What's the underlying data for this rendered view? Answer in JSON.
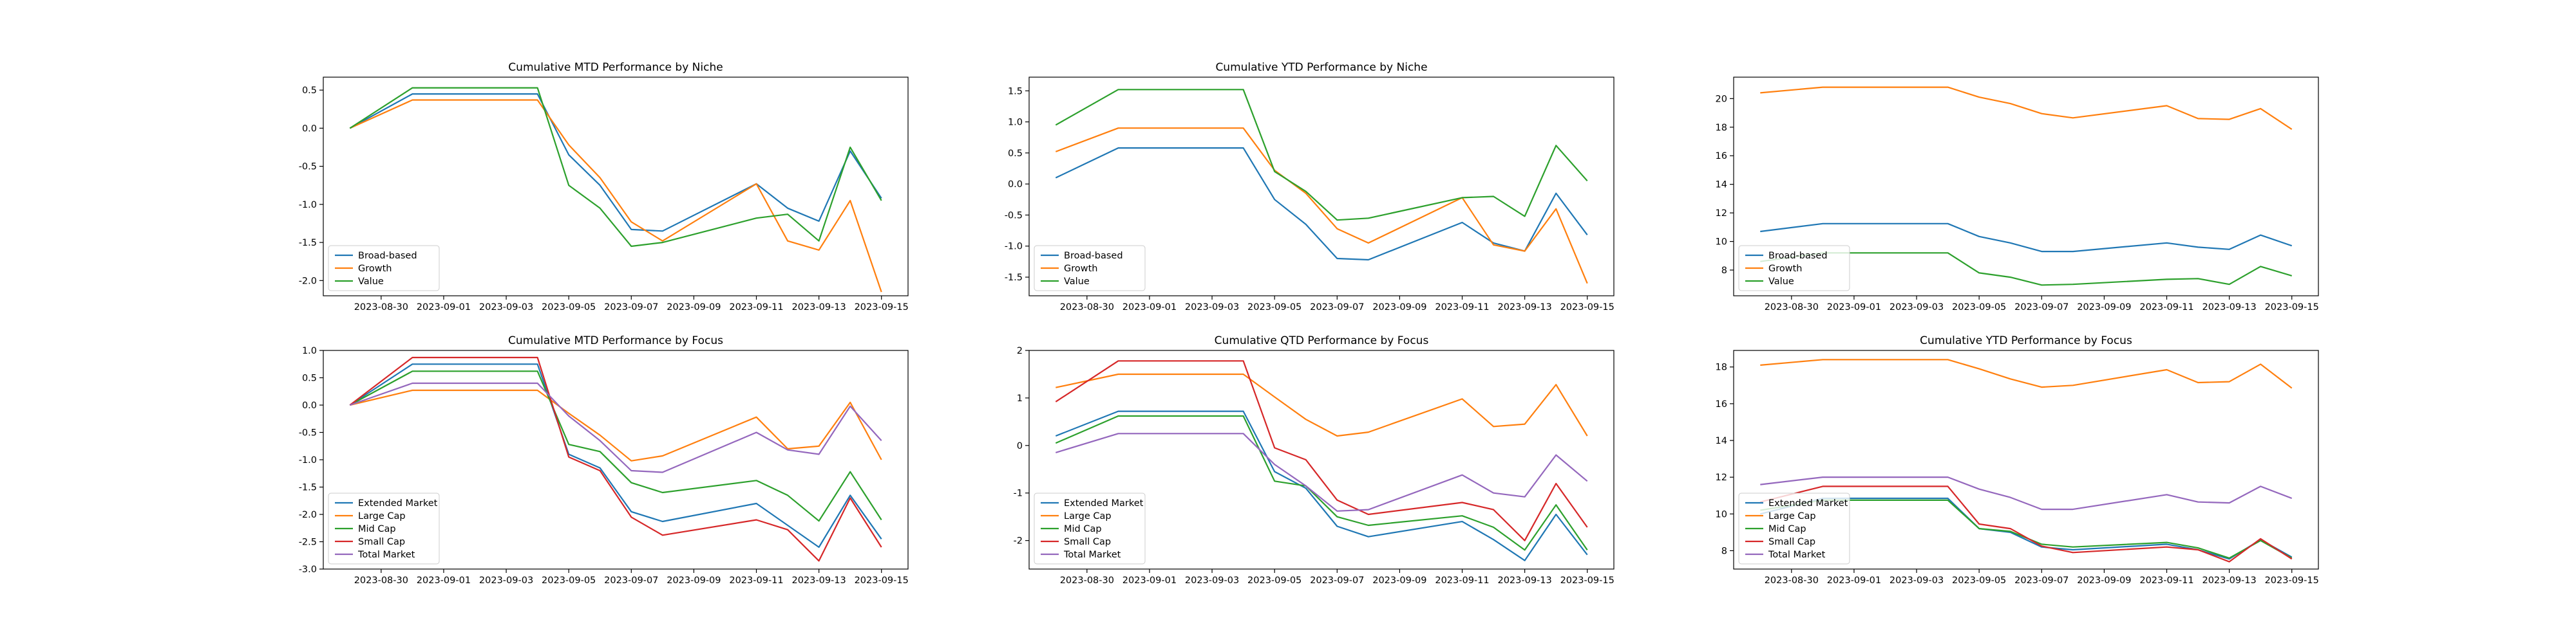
{
  "colors": {
    "Broad-based": "#1f77b4",
    "Growth": "#ff7f0e",
    "Value": "#2ca02c",
    "Extended Market": "#1f77b4",
    "Large Cap": "#ff7f0e",
    "Mid Cap": "#2ca02c",
    "Small Cap": "#d62728",
    "Total Market": "#9467bd"
  },
  "chart_data": [
    {
      "type": "line",
      "title": "Cumulative MTD Performance by Niche",
      "x": [
        "2023-08-29",
        "2023-08-31",
        "2023-09-01",
        "2023-09-04",
        "2023-09-05",
        "2023-09-06",
        "2023-09-07",
        "2023-09-08",
        "2023-09-11",
        "2023-09-12",
        "2023-09-13",
        "2023-09-14",
        "2023-09-15"
      ],
      "xticks": [
        "2023-08-30",
        "2023-09-01",
        "2023-09-03",
        "2023-09-05",
        "2023-09-07",
        "2023-09-09",
        "2023-09-11",
        "2023-09-13",
        "2023-09-15"
      ],
      "yticks": [
        "0.5",
        "0.0",
        "-0.5",
        "-1.0",
        "-1.5",
        "-2.0"
      ],
      "ylim": [
        -2.2,
        0.67
      ],
      "legend": "lower left",
      "series": [
        {
          "name": "Broad-based",
          "values": [
            0.0,
            0.45,
            0.45,
            0.45,
            -0.35,
            -0.75,
            -1.33,
            -1.35,
            -0.73,
            -1.05,
            -1.22,
            -0.3,
            -0.92
          ]
        },
        {
          "name": "Growth",
          "values": [
            0.0,
            0.37,
            0.37,
            0.37,
            -0.22,
            -0.65,
            -1.23,
            -1.48,
            -0.73,
            -1.48,
            -1.6,
            -0.95,
            -2.15
          ]
        },
        {
          "name": "Value",
          "values": [
            0.0,
            0.53,
            0.53,
            0.53,
            -0.75,
            -1.05,
            -1.55,
            -1.5,
            -1.18,
            -1.13,
            -1.48,
            -0.25,
            -0.95
          ]
        }
      ]
    },
    {
      "type": "line",
      "title": "Cumulative YTD Performance by Niche",
      "x": [
        "2023-08-29",
        "2023-08-31",
        "2023-09-01",
        "2023-09-04",
        "2023-09-05",
        "2023-09-06",
        "2023-09-07",
        "2023-09-08",
        "2023-09-11",
        "2023-09-12",
        "2023-09-13",
        "2023-09-14",
        "2023-09-15"
      ],
      "xticks": [
        "2023-08-30",
        "2023-09-01",
        "2023-09-03",
        "2023-09-05",
        "2023-09-07",
        "2023-09-09",
        "2023-09-11",
        "2023-09-13",
        "2023-09-15"
      ],
      "yticks": [
        "1.5",
        "1.0",
        "0.5",
        "0.0",
        "-0.5",
        "-1.0",
        "-1.5"
      ],
      "ylim": [
        -1.8,
        1.72
      ],
      "legend": "lower left",
      "series": [
        {
          "name": "Broad-based",
          "values": [
            0.1,
            0.58,
            0.58,
            0.58,
            -0.25,
            -0.65,
            -1.2,
            -1.22,
            -0.62,
            -0.95,
            -1.08,
            -0.15,
            -0.82
          ]
        },
        {
          "name": "Growth",
          "values": [
            0.52,
            0.9,
            0.9,
            0.9,
            0.22,
            -0.15,
            -0.72,
            -0.95,
            -0.22,
            -0.98,
            -1.08,
            -0.4,
            -1.6
          ]
        },
        {
          "name": "Value",
          "values": [
            0.95,
            1.52,
            1.52,
            1.52,
            0.2,
            -0.12,
            -0.58,
            -0.55,
            -0.22,
            -0.2,
            -0.52,
            0.62,
            0.05
          ]
        }
      ]
    },
    {
      "type": "line",
      "title": "",
      "x": [
        "2023-08-29",
        "2023-08-31",
        "2023-09-01",
        "2023-09-04",
        "2023-09-05",
        "2023-09-06",
        "2023-09-07",
        "2023-09-08",
        "2023-09-11",
        "2023-09-12",
        "2023-09-13",
        "2023-09-14",
        "2023-09-15"
      ],
      "xticks": [
        "2023-08-30",
        "2023-09-01",
        "2023-09-03",
        "2023-09-05",
        "2023-09-07",
        "2023-09-09",
        "2023-09-11",
        "2023-09-13",
        "2023-09-15"
      ],
      "yticks": [
        "20",
        "18",
        "16",
        "14",
        "12",
        "10",
        "8"
      ],
      "ylim": [
        6.2,
        21.5
      ],
      "legend": "lower left",
      "series": [
        {
          "name": "Broad-based",
          "values": [
            10.7,
            11.25,
            11.25,
            11.25,
            10.35,
            9.9,
            9.3,
            9.3,
            9.9,
            9.6,
            9.45,
            10.45,
            9.7
          ]
        },
        {
          "name": "Growth",
          "values": [
            20.4,
            20.8,
            20.8,
            20.8,
            20.1,
            19.65,
            18.95,
            18.65,
            19.5,
            18.6,
            18.55,
            19.3,
            17.85
          ]
        },
        {
          "name": "Value",
          "values": [
            8.6,
            9.2,
            9.2,
            9.2,
            7.8,
            7.5,
            6.95,
            7.0,
            7.35,
            7.4,
            7.0,
            8.25,
            7.6
          ]
        }
      ]
    },
    {
      "type": "line",
      "title": "Cumulative MTD Performance by Focus",
      "x": [
        "2023-08-29",
        "2023-08-31",
        "2023-09-01",
        "2023-09-04",
        "2023-09-05",
        "2023-09-06",
        "2023-09-07",
        "2023-09-08",
        "2023-09-11",
        "2023-09-12",
        "2023-09-13",
        "2023-09-14",
        "2023-09-15"
      ],
      "xticks": [
        "2023-08-30",
        "2023-09-01",
        "2023-09-03",
        "2023-09-05",
        "2023-09-07",
        "2023-09-09",
        "2023-09-11",
        "2023-09-13",
        "2023-09-15"
      ],
      "yticks": [
        "1.0",
        "0.5",
        "0.0",
        "-0.5",
        "-1.0",
        "-1.5",
        "-2.0",
        "-2.5",
        "-3.0"
      ],
      "ylim": [
        -3.0,
        1.0
      ],
      "legend": "lower left",
      "series": [
        {
          "name": "Extended Market",
          "values": [
            0.0,
            0.75,
            0.75,
            0.75,
            -0.9,
            -1.15,
            -1.95,
            -2.13,
            -1.8,
            -2.2,
            -2.6,
            -1.65,
            -2.45
          ]
        },
        {
          "name": "Large Cap",
          "values": [
            0.0,
            0.27,
            0.27,
            0.27,
            -0.15,
            -0.55,
            -1.02,
            -0.93,
            -0.22,
            -0.8,
            -0.75,
            0.05,
            -1.0
          ]
        },
        {
          "name": "Mid Cap",
          "values": [
            0.0,
            0.62,
            0.62,
            0.62,
            -0.72,
            -0.85,
            -1.42,
            -1.6,
            -1.38,
            -1.65,
            -2.12,
            -1.22,
            -2.1
          ]
        },
        {
          "name": "Small Cap",
          "values": [
            0.0,
            0.87,
            0.87,
            0.87,
            -0.95,
            -1.2,
            -2.05,
            -2.38,
            -2.1,
            -2.28,
            -2.85,
            -1.7,
            -2.6
          ]
        },
        {
          "name": "Total Market",
          "values": [
            0.0,
            0.4,
            0.4,
            0.4,
            -0.2,
            -0.65,
            -1.2,
            -1.23,
            -0.5,
            -0.82,
            -0.9,
            -0.02,
            -0.65
          ]
        }
      ]
    },
    {
      "type": "line",
      "title": "Cumulative QTD Performance by Focus",
      "x": [
        "2023-08-29",
        "2023-08-31",
        "2023-09-01",
        "2023-09-04",
        "2023-09-05",
        "2023-09-06",
        "2023-09-07",
        "2023-09-08",
        "2023-09-11",
        "2023-09-12",
        "2023-09-13",
        "2023-09-14",
        "2023-09-15"
      ],
      "xticks": [
        "2023-08-30",
        "2023-09-01",
        "2023-09-03",
        "2023-09-05",
        "2023-09-07",
        "2023-09-09",
        "2023-09-11",
        "2023-09-13",
        "2023-09-15"
      ],
      "yticks": [
        "2",
        "1",
        "0",
        "-1",
        "-2"
      ],
      "ylim": [
        -2.6,
        2.0
      ],
      "legend": "lower left",
      "series": [
        {
          "name": "Extended Market",
          "values": [
            0.2,
            0.72,
            0.72,
            0.72,
            -0.55,
            -0.9,
            -1.7,
            -1.92,
            -1.6,
            -1.98,
            -2.42,
            -1.45,
            -2.3
          ]
        },
        {
          "name": "Large Cap",
          "values": [
            1.22,
            1.5,
            1.5,
            1.5,
            1.02,
            0.55,
            0.2,
            0.28,
            0.98,
            0.4,
            0.45,
            1.28,
            0.2
          ]
        },
        {
          "name": "Mid Cap",
          "values": [
            0.05,
            0.62,
            0.62,
            0.62,
            -0.75,
            -0.85,
            -1.5,
            -1.68,
            -1.48,
            -1.72,
            -2.2,
            -1.25,
            -2.2
          ]
        },
        {
          "name": "Small Cap",
          "values": [
            0.92,
            1.78,
            1.78,
            1.78,
            -0.05,
            -0.3,
            -1.15,
            -1.45,
            -1.2,
            -1.35,
            -2.0,
            -0.8,
            -1.72
          ]
        },
        {
          "name": "Total Market",
          "values": [
            -0.15,
            0.25,
            0.25,
            0.25,
            -0.4,
            -0.85,
            -1.38,
            -1.35,
            -0.62,
            -1.0,
            -1.08,
            -0.2,
            -0.75
          ]
        }
      ]
    },
    {
      "type": "line",
      "title": "Cumulative YTD Performance by Focus",
      "x": [
        "2023-08-29",
        "2023-08-31",
        "2023-09-01",
        "2023-09-04",
        "2023-09-05",
        "2023-09-06",
        "2023-09-07",
        "2023-09-08",
        "2023-09-11",
        "2023-09-12",
        "2023-09-13",
        "2023-09-14",
        "2023-09-15"
      ],
      "xticks": [
        "2023-08-30",
        "2023-09-01",
        "2023-09-03",
        "2023-09-05",
        "2023-09-07",
        "2023-09-09",
        "2023-09-11",
        "2023-09-13",
        "2023-09-15"
      ],
      "yticks": [
        "18",
        "16",
        "14",
        "12",
        "10",
        "8"
      ],
      "ylim": [
        7.0,
        18.9
      ],
      "legend": "lower left",
      "series": [
        {
          "name": "Extended Market",
          "values": [
            10.0,
            10.85,
            10.85,
            10.85,
            9.2,
            9.0,
            8.2,
            8.05,
            8.35,
            8.05,
            7.55,
            8.6,
            7.65
          ]
        },
        {
          "name": "Large Cap",
          "values": [
            18.1,
            18.4,
            18.4,
            18.4,
            17.9,
            17.35,
            16.9,
            17.0,
            17.85,
            17.15,
            17.2,
            18.15,
            16.85
          ]
        },
        {
          "name": "Mid Cap",
          "values": [
            10.2,
            10.75,
            10.75,
            10.75,
            9.2,
            9.05,
            8.35,
            8.2,
            8.45,
            8.15,
            7.6,
            8.55,
            7.6
          ]
        },
        {
          "name": "Small Cap",
          "values": [
            10.65,
            11.5,
            11.5,
            11.5,
            9.45,
            9.2,
            8.25,
            7.9,
            8.2,
            8.05,
            7.4,
            8.65,
            7.55
          ]
        },
        {
          "name": "Total Market",
          "values": [
            11.6,
            12.0,
            12.0,
            12.0,
            11.35,
            10.9,
            10.25,
            10.25,
            11.05,
            10.65,
            10.6,
            11.5,
            10.85
          ]
        }
      ]
    }
  ]
}
